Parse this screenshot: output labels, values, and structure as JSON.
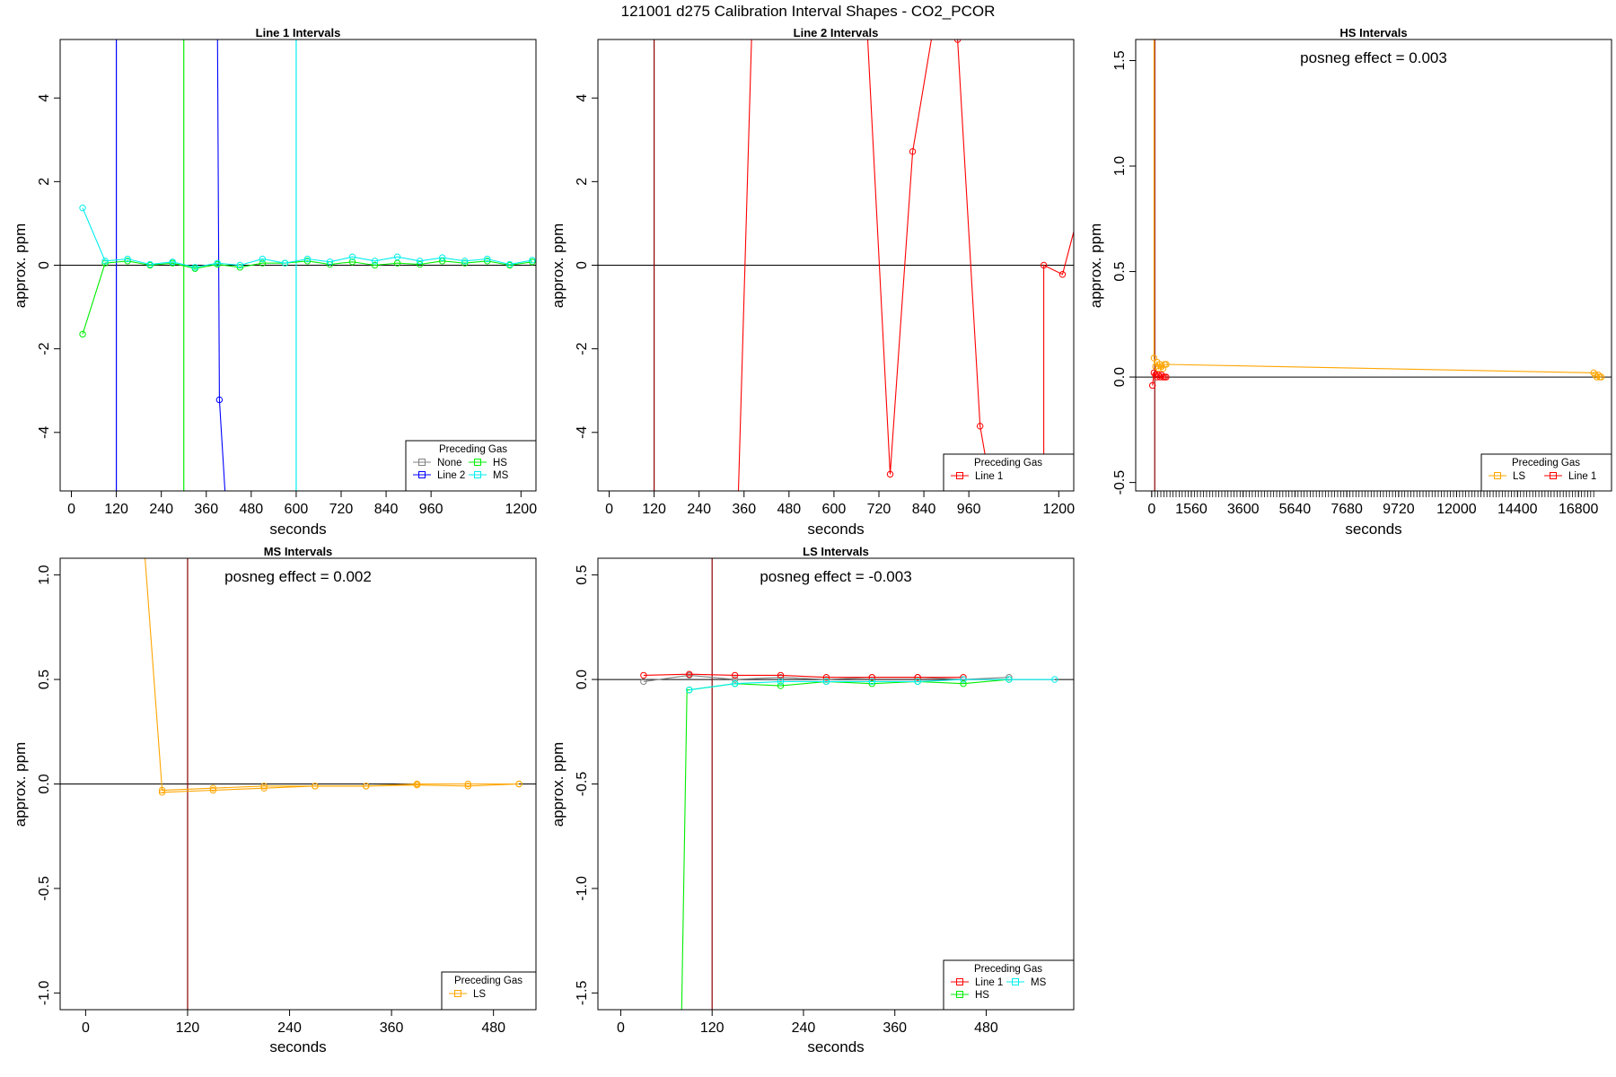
{
  "figure": {
    "title": "121001  d275   Calibration Interval Shapes - CO2_PCOR"
  },
  "colors": {
    "None": "#808080",
    "Line 2": "#0000ff",
    "HS": "#00ee00",
    "MS": "#00eeee",
    "Line 1": "#ff0000",
    "LS": "#ffa500",
    "reference_line": "#000000",
    "cal_marker": "#8b0000"
  },
  "chart_data": [
    {
      "id": "line1",
      "type": "line",
      "title": "Line 1 Intervals",
      "xlabel": "seconds",
      "ylabel": "approx. ppm",
      "xlim": [
        -30,
        1240
      ],
      "ylim": [
        -5.4,
        5.4
      ],
      "xticks": [
        0,
        120,
        240,
        360,
        480,
        600,
        720,
        840,
        960,
        1200
      ],
      "xtick_labels": [
        "0",
        "120",
        "240",
        "360",
        "480",
        "600",
        "720",
        "840",
        "960",
        "1200"
      ],
      "yticks": [
        -4,
        -2,
        0,
        2,
        4
      ],
      "ytick_labels": [
        "-4",
        "-2",
        "0",
        "2",
        "4"
      ],
      "hline": 0,
      "vlines": [
        {
          "x": 120,
          "color_key": "Line 2"
        },
        {
          "x": 300,
          "color_key": "HS"
        },
        {
          "x": 600,
          "color_key": "MS"
        }
      ],
      "annotation": "",
      "legend": {
        "title": "Preceding Gas",
        "position": "bottom-right",
        "columns": 2,
        "entries": [
          {
            "label": "None",
            "color_key": "None"
          },
          {
            "label": "HS",
            "color_key": "HS"
          },
          {
            "label": "Line 2",
            "color_key": "Line 2"
          },
          {
            "label": "MS",
            "color_key": "MS"
          }
        ]
      },
      "series": [
        {
          "name": "Line 2",
          "color_key": "Line 2",
          "x": [
            390,
            395,
            410
          ],
          "y": [
            5.4,
            -3.22,
            -5.4
          ],
          "marker_index": [
            1
          ]
        },
        {
          "name": "HS",
          "color_key": "HS",
          "x": [
            30,
            90,
            150,
            210,
            270,
            330,
            390,
            450,
            510,
            570,
            630,
            690,
            750,
            810,
            870,
            930,
            990,
            1050,
            1110,
            1170,
            1230
          ],
          "y": [
            -1.65,
            0.05,
            0.1,
            0.0,
            0.05,
            -0.08,
            0.02,
            -0.05,
            0.05,
            0.05,
            0.1,
            0.02,
            0.08,
            0.0,
            0.05,
            0.02,
            0.1,
            0.05,
            0.1,
            0.0,
            0.08
          ]
        },
        {
          "name": "MS",
          "color_key": "MS",
          "x": [
            30,
            90,
            150,
            210,
            270,
            330,
            390,
            450,
            510,
            570,
            630,
            690,
            750,
            810,
            870,
            930,
            990,
            1050,
            1110,
            1170,
            1230
          ],
          "y": [
            1.37,
            0.1,
            0.15,
            0.02,
            0.08,
            -0.05,
            0.05,
            0.0,
            0.15,
            0.05,
            0.15,
            0.08,
            0.2,
            0.1,
            0.2,
            0.1,
            0.18,
            0.1,
            0.15,
            0.02,
            0.12
          ]
        }
      ]
    },
    {
      "id": "line2",
      "type": "line",
      "title": "Line 2 Intervals",
      "xlabel": "seconds",
      "ylabel": "approx. ppm",
      "xlim": [
        -30,
        1240
      ],
      "ylim": [
        -5.4,
        5.4
      ],
      "xticks": [
        0,
        120,
        240,
        360,
        480,
        600,
        720,
        840,
        960,
        1200
      ],
      "xtick_labels": [
        "0",
        "120",
        "240",
        "360",
        "480",
        "600",
        "720",
        "840",
        "960",
        "1200"
      ],
      "yticks": [
        -4,
        -2,
        0,
        2,
        4
      ],
      "ytick_labels": [
        "-4",
        "-2",
        "0",
        "2",
        "4"
      ],
      "hline": 0,
      "vlines": [
        {
          "x": 120,
          "color_key": "cal_marker"
        }
      ],
      "annotation": "",
      "legend": {
        "title": "Preceding Gas",
        "position": "bottom-right",
        "columns": 1,
        "entries": [
          {
            "label": "Line 1",
            "color_key": "Line 1"
          }
        ]
      },
      "series": [
        {
          "name": "Line 1",
          "color_key": "Line 1",
          "x": [
            345,
            380,
            690,
            750,
            810,
            860,
            930,
            990,
            1020,
            1160,
            1160,
            1210,
            1240
          ],
          "y": [
            -5.4,
            5.4,
            5.4,
            -5.0,
            2.72,
            5.4,
            5.4,
            -3.85,
            -5.4,
            -5.4,
            0.0,
            -0.22,
            0.8
          ],
          "marker_index": [
            3,
            4,
            6,
            7,
            10,
            11
          ]
        }
      ]
    },
    {
      "id": "hs",
      "type": "line",
      "title": "HS Intervals",
      "xlabel": "seconds",
      "ylabel": "approx. ppm",
      "xlim": [
        -630,
        18100
      ],
      "ylim": [
        -0.54,
        1.6
      ],
      "xticks": [
        0,
        1560,
        3600,
        5640,
        7680,
        9720,
        12000,
        14400,
        16800
      ],
      "xtick_labels": [
        "0",
        "1560",
        "3600",
        "5640",
        "7680",
        "9720",
        "12000",
        "14400",
        "16800"
      ],
      "minor_xticks": {
        "start": 0,
        "end": 17400,
        "step": 120
      },
      "yticks": [
        -0.5,
        0.0,
        0.5,
        1.0,
        1.5
      ],
      "ytick_labels": [
        "-0.5",
        "0.0",
        "0.5",
        "1.0",
        "1.5"
      ],
      "hline": 0,
      "vlines": [
        {
          "x": 120,
          "color_key": "cal_marker"
        }
      ],
      "annotation": "posneg effect = 0.003",
      "legend": {
        "title": "Preceding Gas",
        "position": "bottom-right",
        "columns": 2,
        "entries": [
          {
            "label": "LS",
            "color_key": "LS"
          },
          {
            "label": "Line 1",
            "color_key": "Line 1"
          }
        ]
      },
      "series": [
        {
          "name": "LS",
          "color_key": "LS",
          "x": [
            90,
            90,
            150,
            210,
            270,
            330,
            390,
            450,
            510,
            570,
            17400,
            17460,
            17520,
            17580,
            17640,
            17700
          ],
          "y": [
            1.6,
            0.09,
            0.05,
            0.07,
            0.04,
            0.06,
            0.05,
            0.04,
            0.06,
            0.06,
            0.02,
            0.01,
            0.0,
            0.01,
            0.0,
            0.0
          ],
          "marker_index": [
            1,
            2,
            3,
            4,
            5,
            6,
            7,
            8,
            9,
            10,
            11,
            12,
            13,
            14,
            15
          ]
        },
        {
          "name": "Line 1",
          "color_key": "Line 1",
          "x": [
            30,
            90,
            150,
            210,
            270,
            330,
            390,
            450,
            510,
            570
          ],
          "y": [
            -0.04,
            0.02,
            0.01,
            0.0,
            0.01,
            0.0,
            0.01,
            0.0,
            0.0,
            0.0
          ]
        }
      ]
    },
    {
      "id": "ms",
      "type": "line",
      "title": "MS Intervals",
      "xlabel": "seconds",
      "ylabel": "approx. ppm",
      "xlim": [
        -30,
        530
      ],
      "ylim": [
        -1.08,
        1.08
      ],
      "xticks": [
        0,
        120,
        240,
        360,
        480
      ],
      "xtick_labels": [
        "0",
        "120",
        "240",
        "360",
        "480"
      ],
      "yticks": [
        -1.0,
        -0.5,
        0.0,
        0.5,
        1.0
      ],
      "ytick_labels": [
        "-1.0",
        "-0.5",
        "0.0",
        "0.5",
        "1.0"
      ],
      "hline": 0,
      "vlines": [
        {
          "x": 120,
          "color_key": "cal_marker"
        }
      ],
      "annotation": "posneg effect = 0.002",
      "legend": {
        "title": "Preceding Gas",
        "position": "bottom-right",
        "columns": 1,
        "entries": [
          {
            "label": "LS",
            "color_key": "LS"
          }
        ]
      },
      "series": [
        {
          "name": "LS",
          "color_key": "LS",
          "x": [
            70,
            90,
            150,
            210,
            270,
            330,
            390,
            450,
            510
          ],
          "y": [
            1.08,
            -0.03,
            -0.02,
            -0.01,
            -0.01,
            -0.01,
            0.0,
            0.0,
            0.0
          ],
          "marker_index": [
            1,
            2,
            3,
            4,
            5,
            6,
            7,
            8
          ]
        },
        {
          "name": "LS",
          "color_key": "LS",
          "x": [
            90,
            150,
            210,
            270,
            330,
            390,
            450,
            510
          ],
          "y": [
            -0.04,
            -0.03,
            -0.02,
            -0.01,
            -0.01,
            -0.005,
            -0.01,
            0.0
          ]
        }
      ]
    },
    {
      "id": "ls",
      "type": "line",
      "title": "LS Intervals",
      "xlabel": "seconds",
      "ylabel": "approx. ppm",
      "xlim": [
        -30,
        595
      ],
      "ylim": [
        -1.58,
        0.58
      ],
      "xticks": [
        0,
        120,
        240,
        360,
        480
      ],
      "xtick_labels": [
        "0",
        "120",
        "240",
        "360",
        "480"
      ],
      "yticks": [
        -1.5,
        -1.0,
        -0.5,
        0.0,
        0.5
      ],
      "ytick_labels": [
        "-1.5",
        "-1.0",
        "-0.5",
        "0.0",
        "0.5"
      ],
      "hline": 0,
      "vlines": [
        {
          "x": 120,
          "color_key": "cal_marker"
        }
      ],
      "annotation": "posneg effect = -0.003",
      "legend": {
        "title": "Preceding Gas",
        "position": "bottom-right",
        "columns": 2,
        "entries": [
          {
            "label": "Line 1",
            "color_key": "Line 1"
          },
          {
            "label": "MS",
            "color_key": "MS"
          },
          {
            "label": "HS",
            "color_key": "HS"
          }
        ]
      },
      "series": [
        {
          "name": "None",
          "color_key": "None",
          "x": [
            30,
            90,
            150,
            210,
            270,
            330,
            390,
            450,
            510
          ],
          "y": [
            -0.01,
            0.02,
            0.0,
            0.01,
            0.0,
            0.01,
            0.01,
            0.0,
            0.01
          ]
        },
        {
          "name": "Line 1",
          "color_key": "Line 1",
          "x": [
            30,
            90,
            150,
            210,
            270,
            330,
            390,
            450
          ],
          "y": [
            0.02,
            0.025,
            0.02,
            0.02,
            0.01,
            0.01,
            0.01,
            0.01
          ]
        },
        {
          "name": "HS",
          "color_key": "HS",
          "x": [
            80,
            87,
            90,
            150,
            210,
            270,
            330,
            390,
            450,
            510
          ],
          "y": [
            -1.58,
            -0.05,
            -0.05,
            -0.02,
            -0.03,
            -0.01,
            -0.02,
            -0.01,
            -0.02,
            0.0
          ],
          "marker_index": [
            2,
            3,
            4,
            5,
            6,
            7,
            8,
            9
          ]
        },
        {
          "name": "MS",
          "color_key": "MS",
          "x": [
            90,
            150,
            210,
            270,
            330,
            390,
            450,
            510,
            570
          ],
          "y": [
            -0.05,
            -0.02,
            -0.01,
            -0.01,
            -0.01,
            -0.01,
            0.0,
            0.0,
            0.0
          ]
        }
      ]
    }
  ]
}
